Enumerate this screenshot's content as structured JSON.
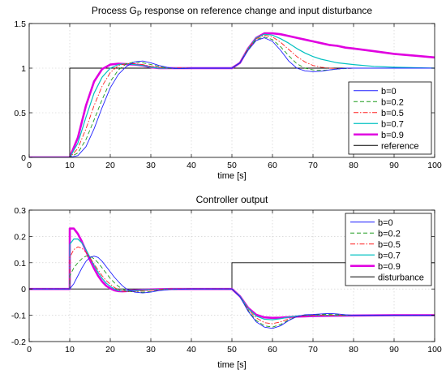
{
  "chart_data": [
    {
      "type": "line",
      "title_main": "Process G",
      "title_sub": "P",
      "title_rest": " response on reference change and input disturbance",
      "xlabel": "time [s]",
      "ylabel": "",
      "xlim": [
        0,
        100
      ],
      "ylim": [
        0,
        1.5
      ],
      "xticks": [
        0,
        10,
        20,
        30,
        40,
        50,
        60,
        70,
        80,
        90,
        100
      ],
      "yticks": [
        0,
        0.5,
        1,
        1.5
      ],
      "ytick_labels": [
        "0",
        "0.5",
        "1",
        "1.5"
      ],
      "grid": true,
      "legend_position": "bottom-right",
      "series": [
        {
          "name": "b=0",
          "color": "#1f1fff",
          "dash": "solid",
          "width": 0.9,
          "x": [
            0,
            10,
            12,
            14,
            16,
            18,
            20,
            22,
            24,
            26,
            28,
            30,
            32,
            34,
            36,
            38,
            40,
            45,
            50,
            52,
            54,
            56,
            58,
            60,
            62,
            64,
            66,
            68,
            70,
            72,
            74,
            76,
            78,
            80,
            85,
            90,
            100
          ],
          "y": [
            0,
            0,
            0.02,
            0.12,
            0.32,
            0.56,
            0.78,
            0.93,
            1.02,
            1.07,
            1.08,
            1.06,
            1.03,
            1.01,
            0.995,
            0.995,
            1.0,
            1.0,
            1.0,
            1.06,
            1.2,
            1.31,
            1.34,
            1.3,
            1.2,
            1.08,
            1.0,
            0.97,
            0.96,
            0.965,
            0.98,
            0.99,
            1.0,
            1.0,
            1.0,
            1.0,
            1.0
          ]
        },
        {
          "name": "b=0.2",
          "color": "#1b9a1b",
          "dash": "5 3",
          "width": 0.9,
          "x": [
            0,
            10,
            12,
            14,
            16,
            18,
            20,
            22,
            24,
            26,
            28,
            30,
            32,
            34,
            36,
            38,
            40,
            45,
            50,
            52,
            54,
            56,
            58,
            60,
            62,
            64,
            66,
            68,
            70,
            72,
            74,
            76,
            78,
            80,
            85,
            90,
            100
          ],
          "y": [
            0,
            0,
            0.05,
            0.2,
            0.42,
            0.65,
            0.85,
            0.98,
            1.05,
            1.07,
            1.06,
            1.04,
            1.02,
            1.0,
            0.995,
            0.997,
            1.0,
            1.0,
            1.0,
            1.06,
            1.21,
            1.32,
            1.35,
            1.32,
            1.24,
            1.14,
            1.05,
            1.0,
            0.98,
            0.975,
            0.98,
            0.99,
            0.995,
            1.0,
            1.0,
            1.0,
            1.0
          ]
        },
        {
          "name": "b=0.5",
          "color": "#ff2020",
          "dash": "6 2 1.5 2",
          "width": 0.9,
          "x": [
            0,
            10,
            12,
            14,
            16,
            18,
            20,
            22,
            24,
            26,
            28,
            30,
            32,
            34,
            36,
            38,
            40,
            45,
            50,
            52,
            54,
            56,
            58,
            60,
            62,
            64,
            66,
            68,
            70,
            72,
            74,
            76,
            78,
            80,
            85,
            90,
            100
          ],
          "y": [
            0,
            0,
            0.1,
            0.32,
            0.58,
            0.8,
            0.95,
            1.03,
            1.05,
            1.05,
            1.04,
            1.02,
            1.01,
            1.0,
            1.0,
            1.0,
            1.0,
            1.0,
            1.0,
            1.06,
            1.22,
            1.33,
            1.37,
            1.35,
            1.29,
            1.21,
            1.13,
            1.07,
            1.03,
            1.01,
            1.0,
            0.995,
            0.995,
            1.0,
            1.0,
            1.0,
            1.0
          ]
        },
        {
          "name": "b=0.7",
          "color": "#00c0c0",
          "dash": "solid",
          "width": 1.2,
          "x": [
            0,
            10,
            12,
            14,
            16,
            18,
            20,
            22,
            24,
            26,
            28,
            30,
            32,
            34,
            36,
            38,
            40,
            45,
            50,
            52,
            54,
            56,
            58,
            60,
            62,
            64,
            66,
            68,
            70,
            72,
            74,
            76,
            78,
            80,
            85,
            90,
            100
          ],
          "y": [
            0,
            0,
            0.16,
            0.45,
            0.72,
            0.9,
            1.0,
            1.04,
            1.05,
            1.04,
            1.03,
            1.01,
            1.0,
            1.0,
            1.0,
            1.0,
            1.0,
            1.0,
            1.0,
            1.06,
            1.22,
            1.34,
            1.38,
            1.37,
            1.33,
            1.28,
            1.22,
            1.17,
            1.13,
            1.1,
            1.08,
            1.06,
            1.05,
            1.04,
            1.02,
            1.01,
            1.0
          ]
        },
        {
          "name": "b=0.9",
          "color": "#e000e0",
          "dash": "solid",
          "width": 2.6,
          "x": [
            0,
            10,
            12,
            14,
            16,
            18,
            20,
            22,
            24,
            26,
            28,
            30,
            32,
            34,
            36,
            38,
            40,
            45,
            50,
            52,
            54,
            56,
            58,
            60,
            62,
            64,
            66,
            68,
            70,
            72,
            74,
            76,
            78,
            80,
            85,
            90,
            100
          ],
          "y": [
            0,
            0,
            0.22,
            0.58,
            0.85,
            0.99,
            1.04,
            1.05,
            1.045,
            1.04,
            1.03,
            1.01,
            1.0,
            1.0,
            1.0,
            1.0,
            1.0,
            1.0,
            1.0,
            1.06,
            1.22,
            1.34,
            1.39,
            1.39,
            1.38,
            1.36,
            1.34,
            1.32,
            1.3,
            1.28,
            1.26,
            1.25,
            1.23,
            1.22,
            1.19,
            1.16,
            1.12
          ]
        },
        {
          "name": "reference",
          "color": "#000000",
          "dash": "solid",
          "width": 0.9,
          "x": [
            0,
            10,
            10,
            100
          ],
          "y": [
            0,
            0,
            1,
            1
          ]
        }
      ]
    },
    {
      "type": "line",
      "title_main": "Controller output",
      "title_sub": "",
      "title_rest": "",
      "xlabel": "time [s]",
      "ylabel": "",
      "xlim": [
        0,
        100
      ],
      "ylim": [
        -0.2,
        0.3
      ],
      "xticks": [
        0,
        10,
        20,
        30,
        40,
        50,
        60,
        70,
        80,
        90,
        100
      ],
      "yticks": [
        -0.2,
        -0.1,
        0,
        0.1,
        0.2,
        0.3
      ],
      "ytick_labels": [
        "-0.2",
        "-0.1",
        "0",
        "0.1",
        "0.2",
        "0.3"
      ],
      "grid": true,
      "legend_position": "top-right",
      "series": [
        {
          "name": "b=0",
          "color": "#1f1fff",
          "dash": "solid",
          "width": 0.9,
          "x": [
            0,
            10,
            11,
            12,
            13,
            14,
            15,
            16,
            17,
            18,
            19,
            20,
            21,
            22,
            23,
            24,
            26,
            28,
            30,
            32,
            35,
            40,
            50,
            52,
            54,
            56,
            58,
            60,
            62,
            64,
            66,
            68,
            70,
            72,
            74,
            76,
            78,
            80,
            85,
            90,
            100
          ],
          "y": [
            0,
            0,
            0.02,
            0.05,
            0.08,
            0.105,
            0.12,
            0.125,
            0.12,
            0.105,
            0.085,
            0.065,
            0.045,
            0.028,
            0.012,
            0.0,
            -0.012,
            -0.015,
            -0.012,
            -0.006,
            -0.002,
            0,
            0,
            -0.03,
            -0.085,
            -0.125,
            -0.145,
            -0.15,
            -0.14,
            -0.12,
            -0.105,
            -0.098,
            -0.097,
            -0.095,
            -0.093,
            -0.095,
            -0.098,
            -0.1,
            -0.1,
            -0.1,
            -0.1
          ]
        },
        {
          "name": "b=0.2",
          "color": "#1b9a1b",
          "dash": "5 3",
          "width": 0.9,
          "x": [
            0,
            10,
            10.01,
            11,
            12,
            13,
            14,
            15,
            16,
            17,
            18,
            19,
            20,
            21,
            22,
            23,
            24,
            26,
            28,
            30,
            32,
            35,
            40,
            50,
            52,
            54,
            56,
            58,
            60,
            62,
            64,
            66,
            68,
            70,
            72,
            74,
            76,
            78,
            80,
            85,
            90,
            100
          ],
          "y": [
            0,
            0,
            0.05,
            0.08,
            0.1,
            0.115,
            0.125,
            0.125,
            0.115,
            0.1,
            0.08,
            0.06,
            0.04,
            0.024,
            0.01,
            0.0,
            -0.007,
            -0.012,
            -0.012,
            -0.01,
            -0.005,
            -0.002,
            0,
            0,
            -0.03,
            -0.082,
            -0.12,
            -0.14,
            -0.145,
            -0.135,
            -0.118,
            -0.105,
            -0.1,
            -0.098,
            -0.097,
            -0.097,
            -0.098,
            -0.1,
            -0.1,
            -0.1,
            -0.1,
            -0.1
          ]
        },
        {
          "name": "b=0.5",
          "color": "#ff2020",
          "dash": "6 2 1.5 2",
          "width": 0.9,
          "x": [
            0,
            10,
            10.01,
            11,
            12,
            13,
            14,
            15,
            16,
            17,
            18,
            19,
            20,
            21,
            22,
            23,
            24,
            26,
            28,
            30,
            32,
            35,
            40,
            50,
            52,
            54,
            56,
            58,
            60,
            62,
            64,
            66,
            68,
            70,
            72,
            74,
            76,
            78,
            80,
            85,
            90,
            100
          ],
          "y": [
            0,
            0,
            0.12,
            0.15,
            0.16,
            0.155,
            0.14,
            0.118,
            0.095,
            0.072,
            0.05,
            0.032,
            0.018,
            0.006,
            -0.003,
            -0.008,
            -0.01,
            -0.01,
            -0.007,
            -0.004,
            -0.002,
            0,
            0,
            0,
            -0.03,
            -0.078,
            -0.11,
            -0.128,
            -0.132,
            -0.125,
            -0.114,
            -0.106,
            -0.101,
            -0.1,
            -0.1,
            -0.1,
            -0.1,
            -0.1,
            -0.1,
            -0.1,
            -0.1,
            -0.1
          ]
        },
        {
          "name": "b=0.7",
          "color": "#00c0c0",
          "dash": "solid",
          "width": 1.2,
          "x": [
            0,
            10,
            10.01,
            11,
            12,
            13,
            14,
            15,
            16,
            17,
            18,
            19,
            20,
            21,
            22,
            23,
            24,
            26,
            28,
            30,
            35,
            40,
            50,
            52,
            54,
            56,
            58,
            60,
            62,
            64,
            66,
            68,
            70,
            72,
            74,
            76,
            78,
            80,
            85,
            90,
            100
          ],
          "y": [
            0,
            0,
            0.17,
            0.19,
            0.19,
            0.175,
            0.15,
            0.12,
            0.09,
            0.063,
            0.04,
            0.022,
            0.01,
            0.0,
            -0.006,
            -0.008,
            -0.008,
            -0.006,
            -0.004,
            -0.002,
            0,
            0,
            0,
            -0.028,
            -0.074,
            -0.103,
            -0.115,
            -0.117,
            -0.113,
            -0.107,
            -0.103,
            -0.1,
            -0.1,
            -0.1,
            -0.1,
            -0.1,
            -0.1,
            -0.1,
            -0.1,
            -0.1,
            -0.1
          ]
        },
        {
          "name": "b=0.9",
          "color": "#e000e0",
          "dash": "solid",
          "width": 2.6,
          "x": [
            0,
            10,
            10.01,
            11,
            12,
            13,
            14,
            15,
            16,
            17,
            18,
            19,
            20,
            21,
            22,
            23,
            24,
            26,
            30,
            35,
            40,
            50,
            52,
            54,
            56,
            58,
            60,
            62,
            64,
            66,
            68,
            70,
            75,
            80,
            90,
            100
          ],
          "y": [
            0,
            0,
            0.23,
            0.23,
            0.21,
            0.18,
            0.145,
            0.11,
            0.078,
            0.05,
            0.028,
            0.012,
            0.002,
            -0.005,
            -0.008,
            -0.009,
            -0.008,
            -0.005,
            -0.002,
            0,
            0,
            0,
            -0.028,
            -0.072,
            -0.098,
            -0.108,
            -0.11,
            -0.109,
            -0.107,
            -0.105,
            -0.104,
            -0.103,
            -0.102,
            -0.101,
            -0.1,
            -0.1
          ]
        },
        {
          "name": "disturbance",
          "color": "#000000",
          "dash": "solid",
          "width": 0.9,
          "x": [
            0,
            50,
            50,
            100
          ],
          "y": [
            0,
            0,
            0.1,
            0.1
          ]
        }
      ]
    }
  ]
}
